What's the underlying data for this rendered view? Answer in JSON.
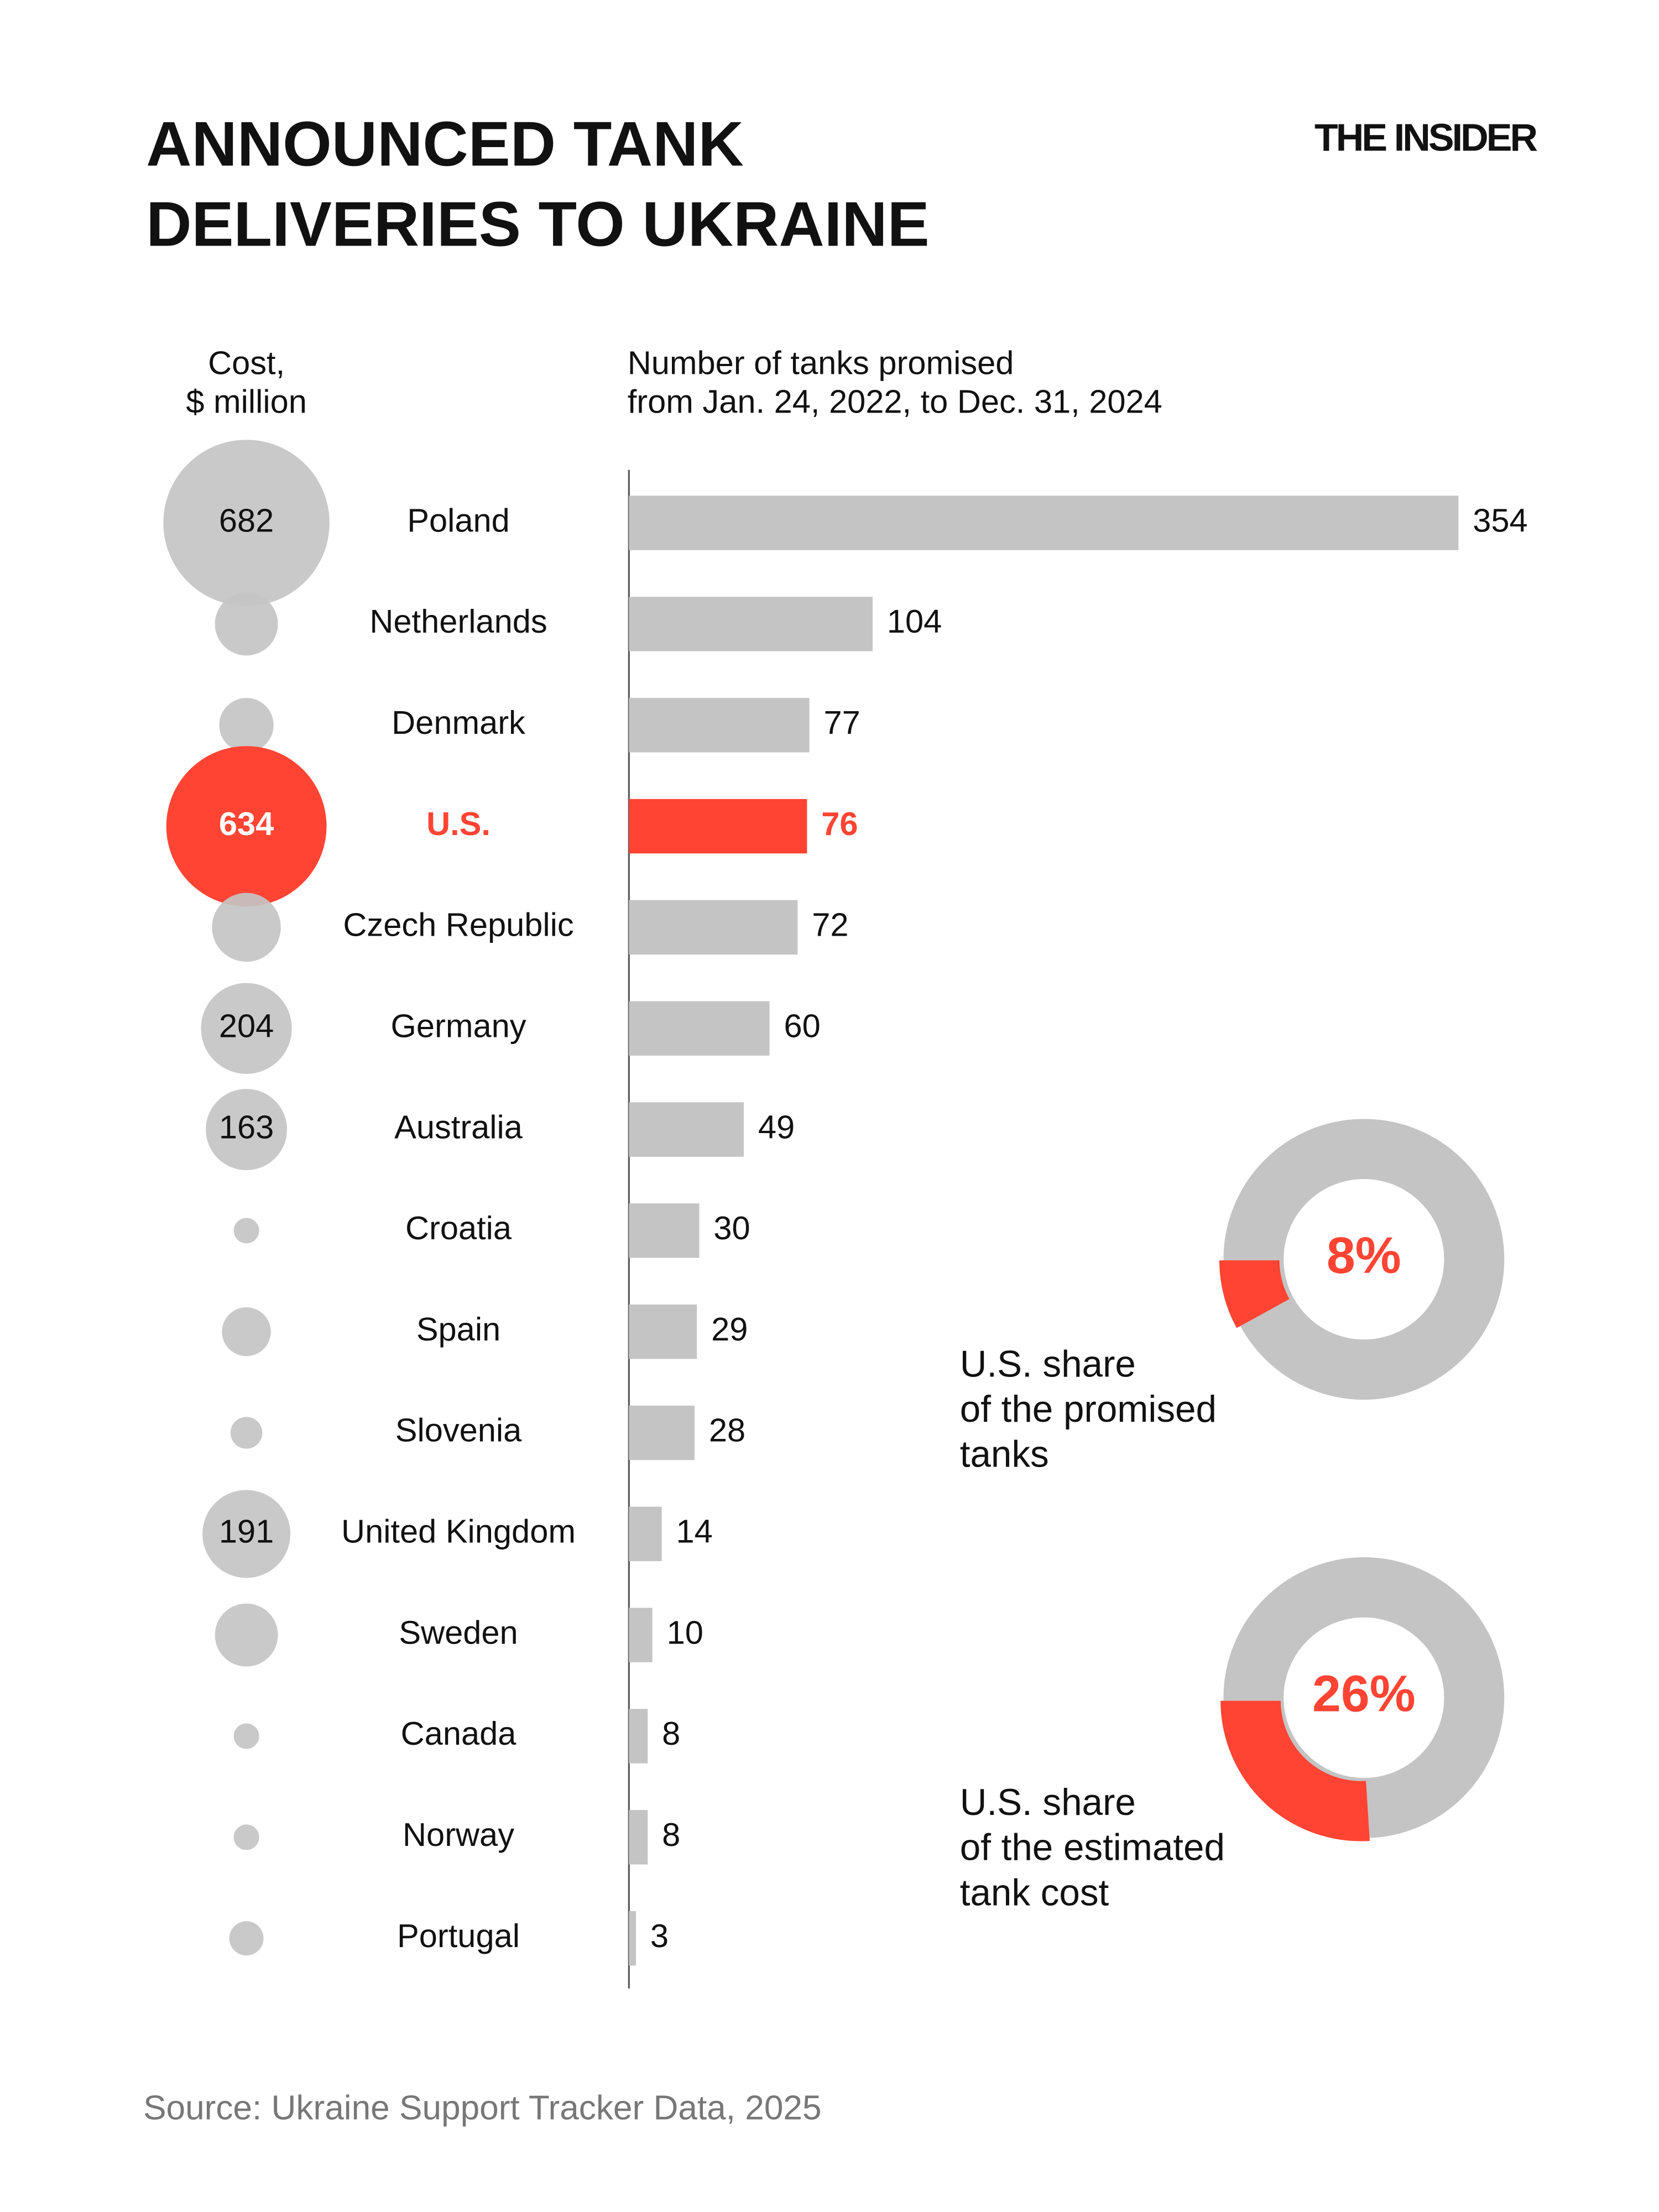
{
  "header": {
    "title_lines": [
      "ANNOUNCED TANK",
      "DELIVERIES TO UKRAINE"
    ],
    "brand": "THE INSIDER"
  },
  "chart_data": [
    {
      "type": "bar",
      "x_label_lines": [
        "Number of tanks promised",
        "from Jan. 24, 2022, to Dec. 31, 2024"
      ],
      "categories": [
        "Poland",
        "Netherlands",
        "Denmark",
        "U.S.",
        "Czech Republic",
        "Germany",
        "Australia",
        "Croatia",
        "Spain",
        "Slovenia",
        "United Kingdom",
        "Sweden",
        "Canada",
        "Norway",
        "Portugal"
      ],
      "values": [
        354,
        104,
        77,
        76,
        72,
        60,
        49,
        30,
        29,
        28,
        14,
        10,
        8,
        8,
        3
      ],
      "color": "#c4c4c4",
      "highlight": {
        "category": "U.S.",
        "color": "#ff4433"
      },
      "xlim": [
        0,
        354
      ],
      "bubbles": {
        "title_lines": [
          "Cost,",
          "$ million"
        ],
        "values": [
          682,
          98,
          73,
          634,
          117,
          204,
          163,
          16,
          59,
          25,
          191,
          98,
          16,
          16,
          29
        ],
        "show_label": [
          true,
          false,
          false,
          true,
          false,
          true,
          true,
          false,
          false,
          false,
          true,
          false,
          false,
          false,
          false
        ]
      }
    },
    {
      "type": "donut",
      "values": [
        8
      ],
      "value_labels": [
        "8%"
      ],
      "caption_lines": [
        "U.S. share",
        "of the promised",
        "tanks"
      ],
      "color": "#ff4433",
      "base_color": "#c4c4c4"
    },
    {
      "type": "donut",
      "values": [
        26
      ],
      "value_labels": [
        "26%"
      ],
      "caption_lines": [
        "U.S. share",
        "of the estimated",
        "tank cost"
      ],
      "color": "#ff4433",
      "base_color": "#c4c4c4"
    }
  ],
  "source": "Source: Ukraine Support Tracker Data, 2025"
}
